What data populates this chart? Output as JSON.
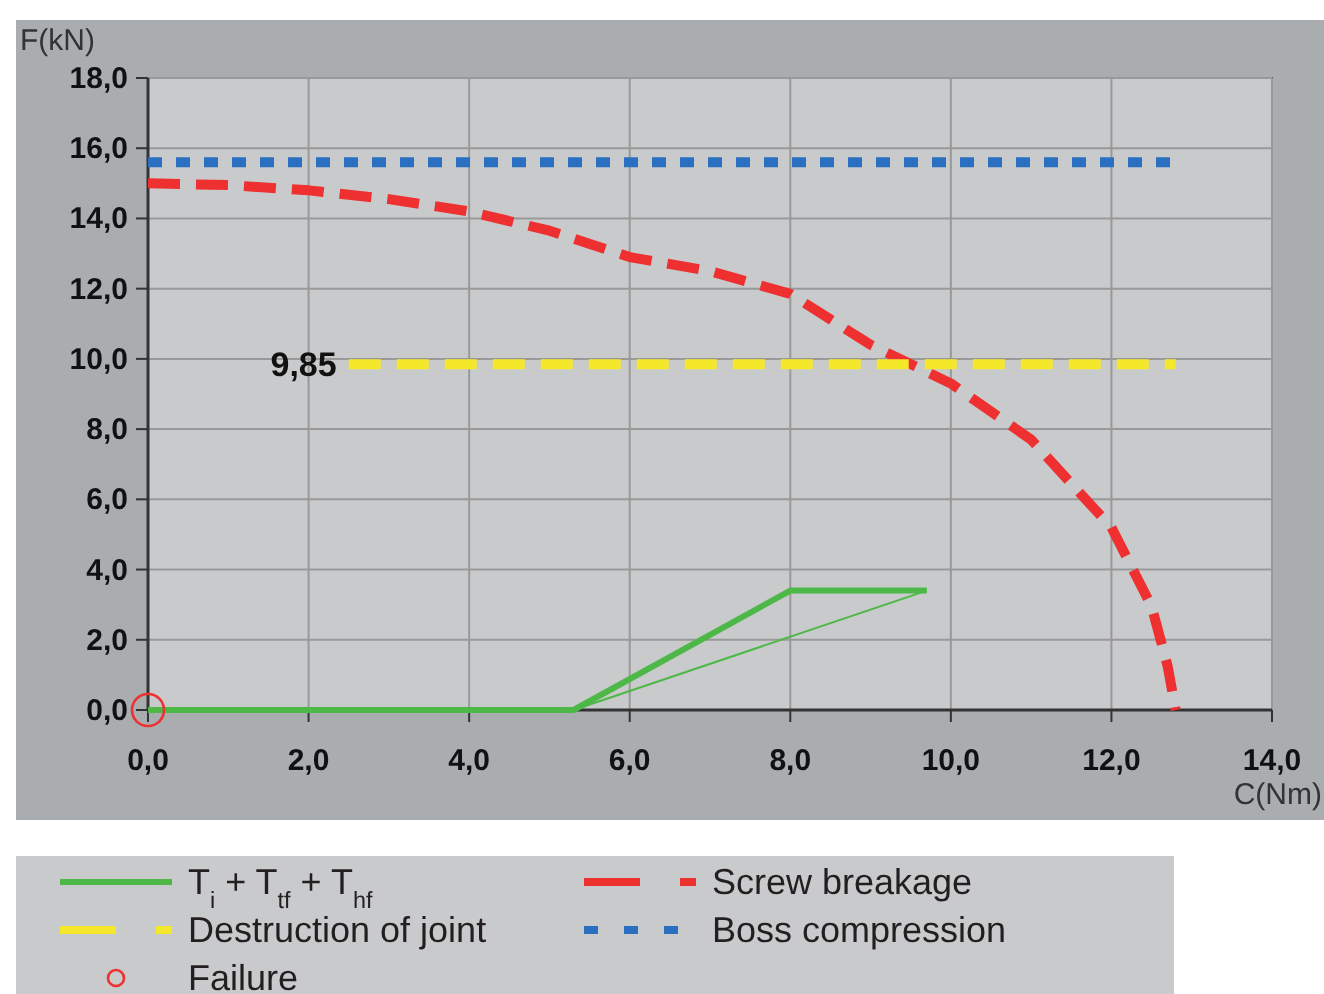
{
  "chart_data": {
    "type": "line",
    "xlabel": "C(Nm)",
    "ylabel": "F(kN)",
    "xlim": [
      0,
      14
    ],
    "ylim": [
      0,
      18
    ],
    "xticks": [
      {
        "value": 0,
        "label": "0,0"
      },
      {
        "value": 2,
        "label": "2,0"
      },
      {
        "value": 4,
        "label": "4,0"
      },
      {
        "value": 6,
        "label": "6,0"
      },
      {
        "value": 8,
        "label": "8,0"
      },
      {
        "value": 10,
        "label": "10,0"
      },
      {
        "value": 12,
        "label": "12,0"
      },
      {
        "value": 14,
        "label": "14,0"
      }
    ],
    "yticks": [
      {
        "value": 0,
        "label": "0,0"
      },
      {
        "value": 2,
        "label": "2,0"
      },
      {
        "value": 4,
        "label": "4,0"
      },
      {
        "value": 6,
        "label": "6,0"
      },
      {
        "value": 8,
        "label": "8,0"
      },
      {
        "value": 10,
        "label": "10,0"
      },
      {
        "value": 12,
        "label": "12,0"
      },
      {
        "value": 14,
        "label": "14,0"
      },
      {
        "value": 16,
        "label": "16,0"
      },
      {
        "value": 18,
        "label": "18,0"
      }
    ],
    "grid": true,
    "legend": "bottom",
    "annotations": [
      {
        "text": "9,85",
        "x": 2.5,
        "y": 9.85
      }
    ],
    "series": [
      {
        "name": "T$_{i}$ + T$_{tf}$ + T$_{hf}$",
        "color": "#4db848",
        "x": [
          0,
          5.3,
          8,
          9.7
        ],
        "values": [
          0,
          0,
          3.4,
          3.4
        ],
        "line_style": "solid",
        "marker": "none"
      },
      {
        "name": "Screw breakage",
        "color": "#ee3030",
        "x": [
          0,
          1,
          2,
          3,
          4,
          5,
          6,
          7,
          8,
          9,
          10,
          11,
          12,
          12.5,
          12.7,
          12.8
        ],
        "values": [
          15,
          14.95,
          14.8,
          14.55,
          14.2,
          13.65,
          12.9,
          12.5,
          11.85,
          10.4,
          9.3,
          7.7,
          5.2,
          2.95,
          1.25,
          0
        ],
        "line_style": "dashed",
        "marker": "none"
      },
      {
        "name": "Destruction of joint",
        "color": "#f5e82a",
        "x": [
          2.5,
          12.8
        ],
        "values": [
          9.85,
          9.85
        ],
        "line_style": "dashed",
        "marker": "none"
      },
      {
        "name": "Boss compression",
        "color": "#2a6fc0",
        "x": [
          0,
          12.8
        ],
        "values": [
          15.6,
          15.6
        ],
        "line_style": "dotted",
        "marker": "none"
      },
      {
        "name": "Failure",
        "color": "#ee3030",
        "type": "scatter",
        "x": [
          0
        ],
        "values": [
          0
        ],
        "marker": "circle"
      },
      {
        "color": "#4db848",
        "x": [
          5.3,
          9.7
        ],
        "values": [
          0,
          3.4
        ],
        "line_style": "solid",
        "marker": "none"
      }
    ]
  }
}
